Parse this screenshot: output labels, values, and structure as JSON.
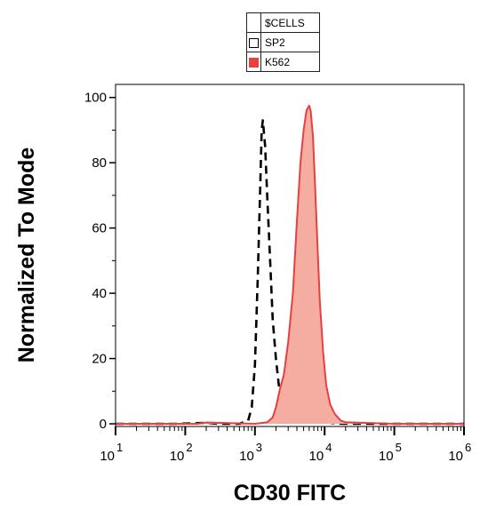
{
  "chart_data": {
    "type": "area",
    "title": "",
    "xlabel": "CD30 FITC",
    "ylabel": "Normalized To Mode",
    "x_scale": "log",
    "xlim": [
      10,
      1000000
    ],
    "ylim": [
      0,
      100
    ],
    "y_ticks": [
      0,
      20,
      40,
      60,
      80,
      100
    ],
    "x_ticks": [
      {
        "base": "10",
        "exp": "1",
        "value": 10
      },
      {
        "base": "10",
        "exp": "2",
        "value": 100
      },
      {
        "base": "10",
        "exp": "3",
        "value": 1000
      },
      {
        "base": "10",
        "exp": "4",
        "value": 10000
      },
      {
        "base": "10",
        "exp": "5",
        "value": 100000
      },
      {
        "base": "10",
        "exp": "6",
        "value": 1000000
      }
    ],
    "legend": {
      "title": "$CELLS",
      "position": "top-center"
    },
    "series": [
      {
        "name": "SP2",
        "style": "dashed",
        "color": "#000000",
        "fill": "none",
        "x": [
          10,
          80,
          200,
          300,
          600,
          800,
          900,
          1000,
          1100,
          1200,
          1250,
          1300,
          1400,
          1500,
          1650,
          1800,
          2000,
          2200,
          2500,
          3000,
          4000,
          5000,
          6000,
          7000,
          8000,
          10000,
          14000,
          20000,
          50000,
          1000000
        ],
        "y": [
          0,
          0,
          0.3,
          0,
          0,
          1,
          5,
          18,
          45,
          75,
          90,
          93,
          85,
          70,
          50,
          32,
          20,
          12,
          6,
          2.5,
          0.5,
          0.5,
          1,
          1.5,
          1.3,
          0.6,
          0.1,
          0,
          0,
          0
        ]
      },
      {
        "name": "K562",
        "style": "solid",
        "color": "#e8403f",
        "fill": "#f5aca1",
        "x": [
          10,
          150,
          200,
          1000,
          1500,
          1800,
          2000,
          2300,
          2600,
          3000,
          3500,
          4000,
          4500,
          5000,
          5500,
          6000,
          6300,
          6800,
          7200,
          7800,
          8500,
          9500,
          10500,
          12000,
          14000,
          17000,
          20000,
          100000,
          1000000
        ],
        "y": [
          0,
          0,
          0.4,
          0,
          0.5,
          2,
          5,
          11,
          15,
          25,
          40,
          62,
          80,
          90,
          96,
          97.5,
          96,
          88,
          76,
          58,
          38,
          22,
          12,
          6,
          3,
          1,
          0.5,
          0,
          0
        ]
      }
    ]
  }
}
